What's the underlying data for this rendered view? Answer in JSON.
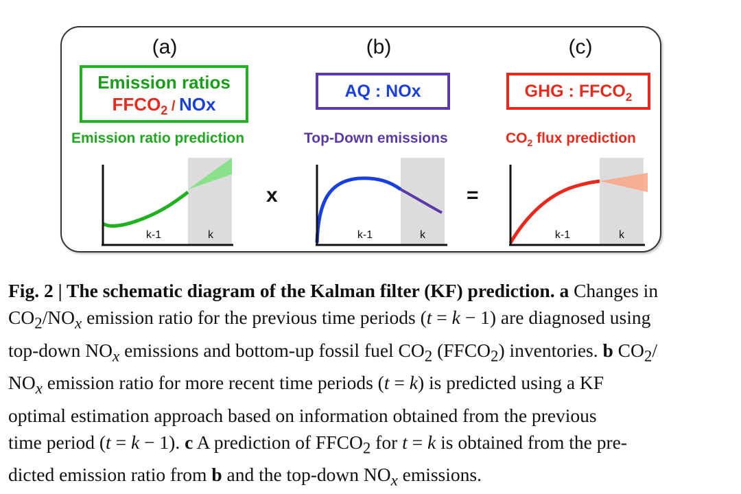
{
  "panels": {
    "a": {
      "letter": "(a)",
      "box_line1": "Emission ratios",
      "box_ffco": "FFCO",
      "box_sub2": "2",
      "box_slash": " / ",
      "box_nox": "NOx",
      "sublabel": "Emission ratio prediction",
      "tick_prev": "k-1",
      "tick_cur": "k",
      "curve_color": "#1fb11f",
      "cone_color": "#7de07d"
    },
    "b": {
      "letter": "(b)",
      "box_text": "AQ : NOx",
      "sublabel": "Top-Down emissions",
      "tick_prev": "k-1",
      "tick_cur": "k",
      "curve_color": "#1a3fe0",
      "tail_color": "#5b3aa8"
    },
    "c": {
      "letter": "(c)",
      "box_text": "GHG : FFCO",
      "box_sub2": "2",
      "sublabel_co": "CO",
      "sublabel_sub2": "2",
      "sublabel_rest": " flux prediction",
      "tick_prev": "k-1",
      "tick_cur": "k",
      "curve_color": "#e8291c",
      "cone_color": "#f7a98a"
    }
  },
  "operators": {
    "times": "x",
    "equals": "="
  },
  "caption": {
    "line1_bold": "Fig. 2 | The schematic diagram of the Kalman filter (KF) prediction. a",
    "line1_rest": " Changes in",
    "line2_a": "CO",
    "line2_b": "/NO",
    "line2_c": " emission ratio for the previous time periods (",
    "line2_d": " = ",
    "line2_e": " − 1) are diagnosed using",
    "line3_a": "top-down NO",
    "line3_b": " emissions and bottom-up fossil fuel CO",
    "line3_c": " (FFCO",
    "line3_d": ") inventories. ",
    "line3_bold": "b",
    "line3_e": " CO",
    "line3_f": "/",
    "line4_a": "NO",
    "line4_b": " emission ratio for more recent time periods (",
    "line4_c": " = ",
    "line4_d": ") is predicted using a KF",
    "line5": "optimal estimation approach based on information obtained from the previous",
    "line6_a": "time period (",
    "line6_b": " = ",
    "line6_c": " − 1). ",
    "line6_bold": "c",
    "line6_d": " A prediction of FFCO",
    "line6_e": " for ",
    "line6_f": " = ",
    "line6_g": " is obtained from the pre-",
    "line7_a": "dicted emission ratio from ",
    "line7_bold": "b",
    "line7_b": " and the top-down NO",
    "line7_c": " emissions.",
    "sym_t": "t",
    "sym_k": "k",
    "sym_x": "x",
    "sub2": "2"
  }
}
